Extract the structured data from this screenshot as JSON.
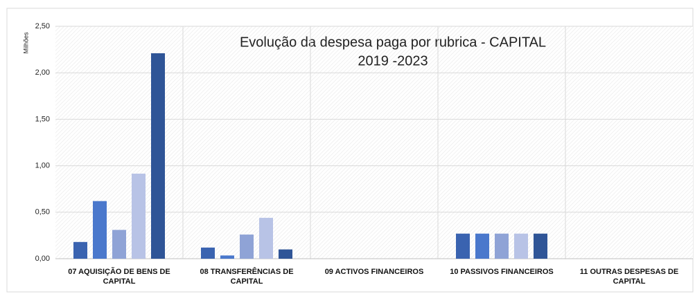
{
  "chart_data": {
    "type": "bar",
    "title": "Evolução da despesa paga por rubrica - CAPITAL",
    "subtitle": "2019   -2023",
    "y_label": "Milhões",
    "categories": [
      "07  AQUISIÇÃO DE BENS DE CAPITAL",
      "08  TRANSFERÊNCIAS DE CAPITAL",
      "09  ACTIVOS FINANCEIROS",
      "10  PASSIVOS FINANCEIROS",
      "11  OUTRAS DESPESAS DE CAPITAL"
    ],
    "series": [
      {
        "color": "#3a63b0",
        "values": [
          0.18,
          0.12,
          0,
          0.27,
          0
        ]
      },
      {
        "color": "#4a78cc",
        "values": [
          0.62,
          0.035,
          0,
          0.27,
          0
        ]
      },
      {
        "color": "#8fa3d6",
        "values": [
          0.31,
          0.26,
          0,
          0.27,
          0
        ]
      },
      {
        "color": "#b8c3e6",
        "values": [
          0.915,
          0.44,
          0,
          0.27,
          0
        ]
      },
      {
        "color": "#2f5597",
        "values": [
          2.21,
          0.1,
          0,
          0.27,
          0
        ]
      }
    ],
    "ylim": [
      0,
      2.5
    ],
    "yticks": [
      {
        "value": 0,
        "label": "0,00"
      },
      {
        "value": 0.5,
        "label": "0,50"
      },
      {
        "value": 1,
        "label": "1,00"
      },
      {
        "value": 1.5,
        "label": "1,50"
      },
      {
        "value": 2,
        "label": "2,00"
      },
      {
        "value": 2.5,
        "label": "2,50"
      }
    ],
    "grid": true
  }
}
